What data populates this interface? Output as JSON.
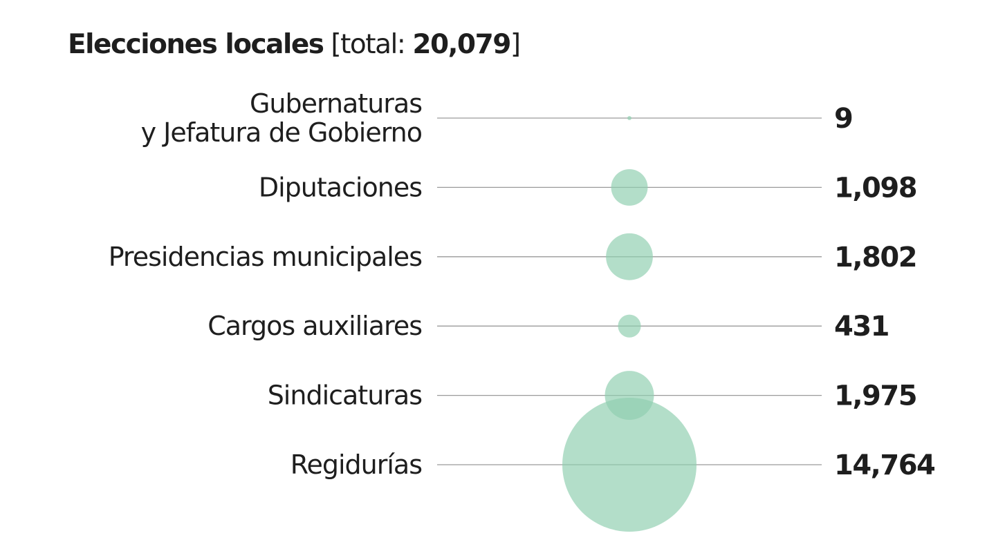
{
  "title": {
    "main": "Elecciones locales",
    "open": "[total: ",
    "total": "20,079",
    "close": "]"
  },
  "colors": {
    "bubble": "#8fceb0",
    "line": "#9a9a9a",
    "text": "#1e1e1e"
  },
  "chart_data": {
    "type": "bubble",
    "title": "Elecciones locales [total: 20,079]",
    "total": 20079,
    "categories": [
      "Gubernaturas\ny Jefatura de Gobierno",
      "Diputaciones",
      "Presidencias municipales",
      "Cargos auxiliares",
      "Sindicaturas",
      "Regidurías"
    ],
    "values": [
      9,
      1098,
      1802,
      431,
      1975,
      14764
    ],
    "value_labels": [
      "9",
      "1,098",
      "1,802",
      "431",
      "1,975",
      "14,764"
    ]
  }
}
